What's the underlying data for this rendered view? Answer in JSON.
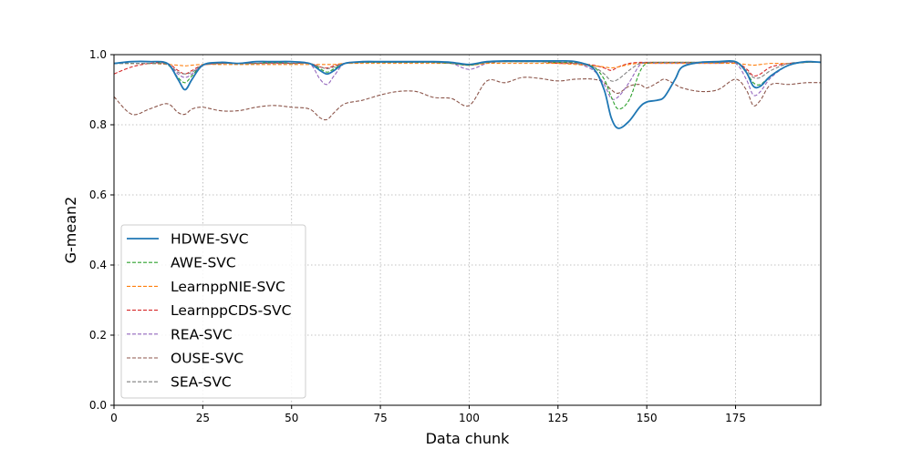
{
  "chart_data": {
    "type": "line",
    "xlabel": "Data chunk",
    "ylabel": "G-mean2",
    "xlim": [
      0,
      199
    ],
    "ylim": [
      0.0,
      1.0
    ],
    "xticks": [
      0,
      25,
      50,
      75,
      100,
      125,
      150,
      175
    ],
    "yticks": [
      0.0,
      0.2,
      0.4,
      0.6,
      0.8,
      1.0
    ],
    "xtick_labels": [
      "0",
      "25",
      "50",
      "75",
      "100",
      "125",
      "150",
      "175"
    ],
    "ytick_labels": [
      "0.0",
      "0.2",
      "0.4",
      "0.6",
      "0.8",
      "1.0"
    ],
    "grid": true,
    "legend_position": "lower-left",
    "x": [
      0,
      5,
      10,
      15,
      18,
      20,
      22,
      25,
      30,
      35,
      40,
      45,
      50,
      55,
      58,
      60,
      62,
      65,
      70,
      75,
      80,
      85,
      90,
      95,
      100,
      105,
      110,
      115,
      120,
      125,
      130,
      135,
      138,
      140,
      142,
      145,
      148,
      150,
      153,
      155,
      158,
      160,
      165,
      170,
      175,
      178,
      180,
      182,
      185,
      190,
      195,
      199
    ],
    "series": [
      {
        "name": "HDWE-SVC",
        "color": "#1f77b4",
        "style": "solid",
        "values": [
          0.975,
          0.98,
          0.98,
          0.975,
          0.93,
          0.9,
          0.93,
          0.97,
          0.978,
          0.975,
          0.98,
          0.98,
          0.98,
          0.975,
          0.955,
          0.945,
          0.955,
          0.975,
          0.98,
          0.98,
          0.98,
          0.98,
          0.98,
          0.978,
          0.972,
          0.98,
          0.982,
          0.982,
          0.982,
          0.982,
          0.98,
          0.96,
          0.9,
          0.82,
          0.79,
          0.81,
          0.85,
          0.865,
          0.87,
          0.88,
          0.93,
          0.965,
          0.978,
          0.98,
          0.98,
          0.95,
          0.91,
          0.91,
          0.94,
          0.97,
          0.98,
          0.978
        ]
      },
      {
        "name": "AWE-SVC",
        "color": "#2ca02c",
        "style": "dashed",
        "values": [
          0.975,
          0.975,
          0.975,
          0.972,
          0.935,
          0.92,
          0.94,
          0.97,
          0.975,
          0.975,
          0.975,
          0.978,
          0.975,
          0.975,
          0.96,
          0.95,
          0.96,
          0.975,
          0.978,
          0.978,
          0.978,
          0.978,
          0.978,
          0.975,
          0.97,
          0.978,
          0.98,
          0.98,
          0.98,
          0.978,
          0.978,
          0.965,
          0.93,
          0.88,
          0.845,
          0.87,
          0.95,
          0.975,
          0.978,
          0.978,
          0.978,
          0.978,
          0.978,
          0.978,
          0.978,
          0.95,
          0.92,
          0.915,
          0.94,
          0.97,
          0.978,
          0.978
        ]
      },
      {
        "name": "LearnppNIE-SVC",
        "color": "#ff7f0e",
        "style": "dashed",
        "values": [
          0.975,
          0.975,
          0.975,
          0.972,
          0.97,
          0.968,
          0.97,
          0.972,
          0.972,
          0.972,
          0.972,
          0.972,
          0.972,
          0.972,
          0.972,
          0.972,
          0.972,
          0.975,
          0.975,
          0.975,
          0.975,
          0.975,
          0.975,
          0.975,
          0.97,
          0.975,
          0.975,
          0.975,
          0.975,
          0.975,
          0.972,
          0.968,
          0.965,
          0.962,
          0.965,
          0.972,
          0.975,
          0.975,
          0.975,
          0.975,
          0.975,
          0.975,
          0.975,
          0.975,
          0.975,
          0.972,
          0.97,
          0.972,
          0.975,
          0.975,
          0.978,
          0.978
        ]
      },
      {
        "name": "LearnppCDS-SVC",
        "color": "#d62728",
        "style": "dashed",
        "values": [
          0.945,
          0.965,
          0.975,
          0.975,
          0.955,
          0.945,
          0.955,
          0.97,
          0.975,
          0.975,
          0.975,
          0.975,
          0.975,
          0.975,
          0.965,
          0.962,
          0.968,
          0.975,
          0.978,
          0.978,
          0.978,
          0.978,
          0.978,
          0.975,
          0.97,
          0.978,
          0.98,
          0.98,
          0.98,
          0.975,
          0.975,
          0.97,
          0.962,
          0.955,
          0.965,
          0.975,
          0.978,
          0.978,
          0.978,
          0.978,
          0.978,
          0.978,
          0.978,
          0.978,
          0.978,
          0.96,
          0.94,
          0.945,
          0.965,
          0.975,
          0.978,
          0.978
        ]
      },
      {
        "name": "REA-SVC",
        "color": "#9467bd",
        "style": "dashed",
        "values": [
          0.975,
          0.975,
          0.975,
          0.972,
          0.945,
          0.935,
          0.945,
          0.97,
          0.975,
          0.975,
          0.975,
          0.978,
          0.975,
          0.975,
          0.93,
          0.915,
          0.94,
          0.975,
          0.978,
          0.978,
          0.978,
          0.978,
          0.978,
          0.975,
          0.958,
          0.975,
          0.98,
          0.98,
          0.98,
          0.978,
          0.975,
          0.955,
          0.915,
          0.875,
          0.88,
          0.92,
          0.97,
          0.975,
          0.975,
          0.975,
          0.975,
          0.975,
          0.975,
          0.975,
          0.975,
          0.93,
          0.885,
          0.895,
          0.935,
          0.97,
          0.978,
          0.978
        ]
      },
      {
        "name": "OUSE-SVC",
        "color": "#8c564b",
        "style": "dashed",
        "values": [
          0.88,
          0.83,
          0.845,
          0.86,
          0.835,
          0.83,
          0.845,
          0.85,
          0.84,
          0.84,
          0.85,
          0.855,
          0.85,
          0.845,
          0.82,
          0.815,
          0.835,
          0.86,
          0.87,
          0.885,
          0.895,
          0.895,
          0.878,
          0.875,
          0.855,
          0.925,
          0.92,
          0.935,
          0.932,
          0.925,
          0.93,
          0.93,
          0.92,
          0.9,
          0.89,
          0.91,
          0.915,
          0.905,
          0.92,
          0.93,
          0.915,
          0.905,
          0.895,
          0.9,
          0.93,
          0.9,
          0.855,
          0.87,
          0.915,
          0.915,
          0.92,
          0.92
        ]
      },
      {
        "name": "SEA-SVC",
        "color": "#7f7f7f",
        "style": "dashed",
        "values": [
          0.975,
          0.975,
          0.975,
          0.972,
          0.95,
          0.945,
          0.95,
          0.97,
          0.975,
          0.975,
          0.975,
          0.975,
          0.975,
          0.975,
          0.965,
          0.96,
          0.965,
          0.975,
          0.978,
          0.978,
          0.978,
          0.978,
          0.978,
          0.975,
          0.972,
          0.978,
          0.98,
          0.98,
          0.98,
          0.978,
          0.975,
          0.965,
          0.945,
          0.925,
          0.93,
          0.955,
          0.975,
          0.978,
          0.978,
          0.978,
          0.978,
          0.978,
          0.978,
          0.978,
          0.978,
          0.955,
          0.935,
          0.935,
          0.955,
          0.975,
          0.978,
          0.978
        ]
      }
    ]
  }
}
